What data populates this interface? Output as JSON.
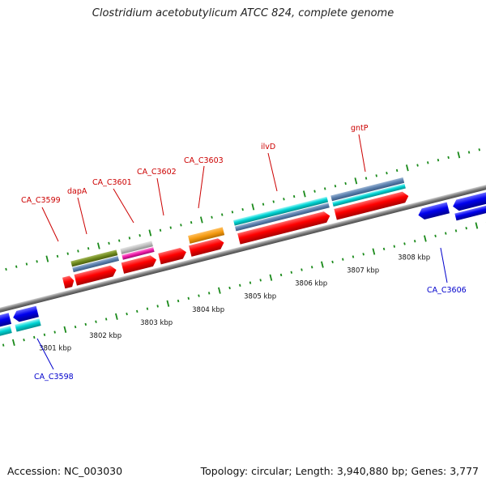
{
  "title": "Clostridium acetobutylicum ATCC 824, complete genome",
  "footer": {
    "accession": "Accession: NC_003030",
    "summary": "Topology: circular; Length: 3,940,880 bp; Genes: 3,777"
  },
  "colors": {
    "forward_label": "#cc0000",
    "reverse_label": "#0000cc",
    "ruler_dots": "#1a8a1a",
    "backbone": "#7a7a7a"
  },
  "ruler_ticks": [
    {
      "id": "3801",
      "label": "3801 kbp"
    },
    {
      "id": "3802",
      "label": "3802 kbp"
    },
    {
      "id": "3803",
      "label": "3803 kbp"
    },
    {
      "id": "3804",
      "label": "3804 kbp"
    },
    {
      "id": "3805",
      "label": "3805 kbp"
    },
    {
      "id": "3806",
      "label": "3806 kbp"
    },
    {
      "id": "3807",
      "label": "3807 kbp"
    },
    {
      "id": "3808",
      "label": "3808 kbp"
    }
  ],
  "forward_genes": [
    {
      "id": "CA_C3599",
      "label": "CA_C3599"
    },
    {
      "id": "dapA",
      "label": "dapA"
    },
    {
      "id": "CA_C3601",
      "label": "CA_C3601"
    },
    {
      "id": "CA_C3602",
      "label": "CA_C3602"
    },
    {
      "id": "CA_C3603",
      "label": "CA_C3603"
    },
    {
      "id": "ilvD",
      "label": "ilvD"
    },
    {
      "id": "gntP",
      "label": "gntP"
    }
  ],
  "reverse_genes": [
    {
      "id": "CA_C3598",
      "label": "CA_C3598"
    },
    {
      "id": "CA_C3606",
      "label": "CA_C3606"
    }
  ]
}
